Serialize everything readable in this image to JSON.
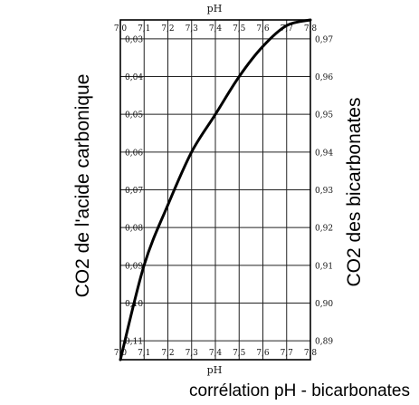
{
  "chart_data": {
    "type": "line",
    "caption": "corrélation pH - bicarbonates",
    "xlabel_top": "pH",
    "xlabel_bottom": "pH",
    "ylabel_left": "CO2 de l'acide carbonique",
    "ylabel_right": "CO2 des bicarbonates",
    "x_ticks": [
      "7,0",
      "7,1",
      "7,2",
      "7,3",
      "7,4",
      "7,5",
      "7,6",
      "7,7",
      "7,8"
    ],
    "xlim": [
      7.0,
      7.8
    ],
    "left_ticks": [
      "0,03",
      "0,04",
      "0,05",
      "0,06",
      "0,07",
      "0,08",
      "0,09",
      "0,10",
      "0,11"
    ],
    "left_axis": {
      "top": 0.025,
      "bottom": 0.115,
      "inverted": true
    },
    "right_ticks": [
      "0,97",
      "0,96",
      "0,95",
      "0,94",
      "0,93",
      "0,92",
      "0,91",
      "0,90",
      "0,89"
    ],
    "right_axis": {
      "top": 0.975,
      "bottom": 0.885
    },
    "grid": true,
    "series": [
      {
        "x": [
          7.0,
          7.1,
          7.2,
          7.3,
          7.4,
          7.5,
          7.6,
          7.7,
          7.8
        ],
        "y": [
          0.115,
          0.09,
          0.074,
          0.06,
          0.05,
          0.04,
          0.032,
          0.0265,
          0.025
        ]
      }
    ]
  }
}
